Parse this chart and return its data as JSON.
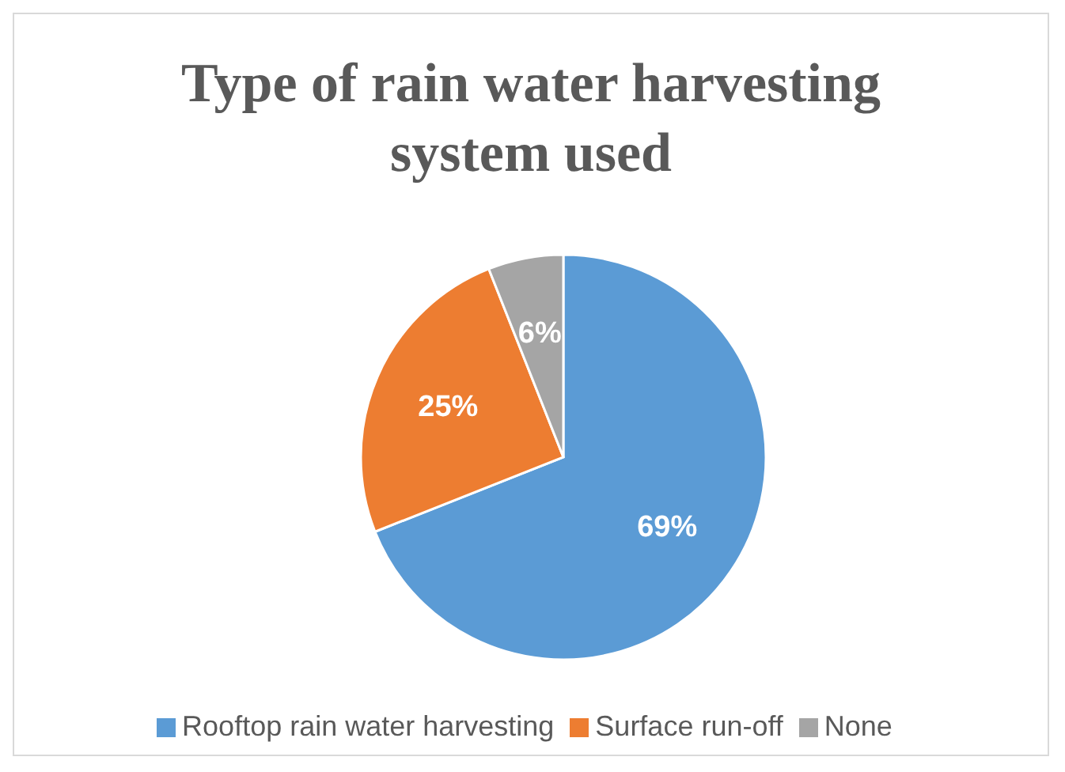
{
  "chart_data": {
    "type": "pie",
    "title": "Type of rain water harvesting system used",
    "categories": [
      "Rooftop rain water harvesting",
      "Surface run-off",
      "None"
    ],
    "values": [
      69,
      25,
      6
    ],
    "colors": [
      "#5b9bd5",
      "#ed7d31",
      "#a5a5a5"
    ],
    "value_labels": [
      "69%",
      "25%",
      "6%"
    ],
    "legend": "bottom"
  }
}
